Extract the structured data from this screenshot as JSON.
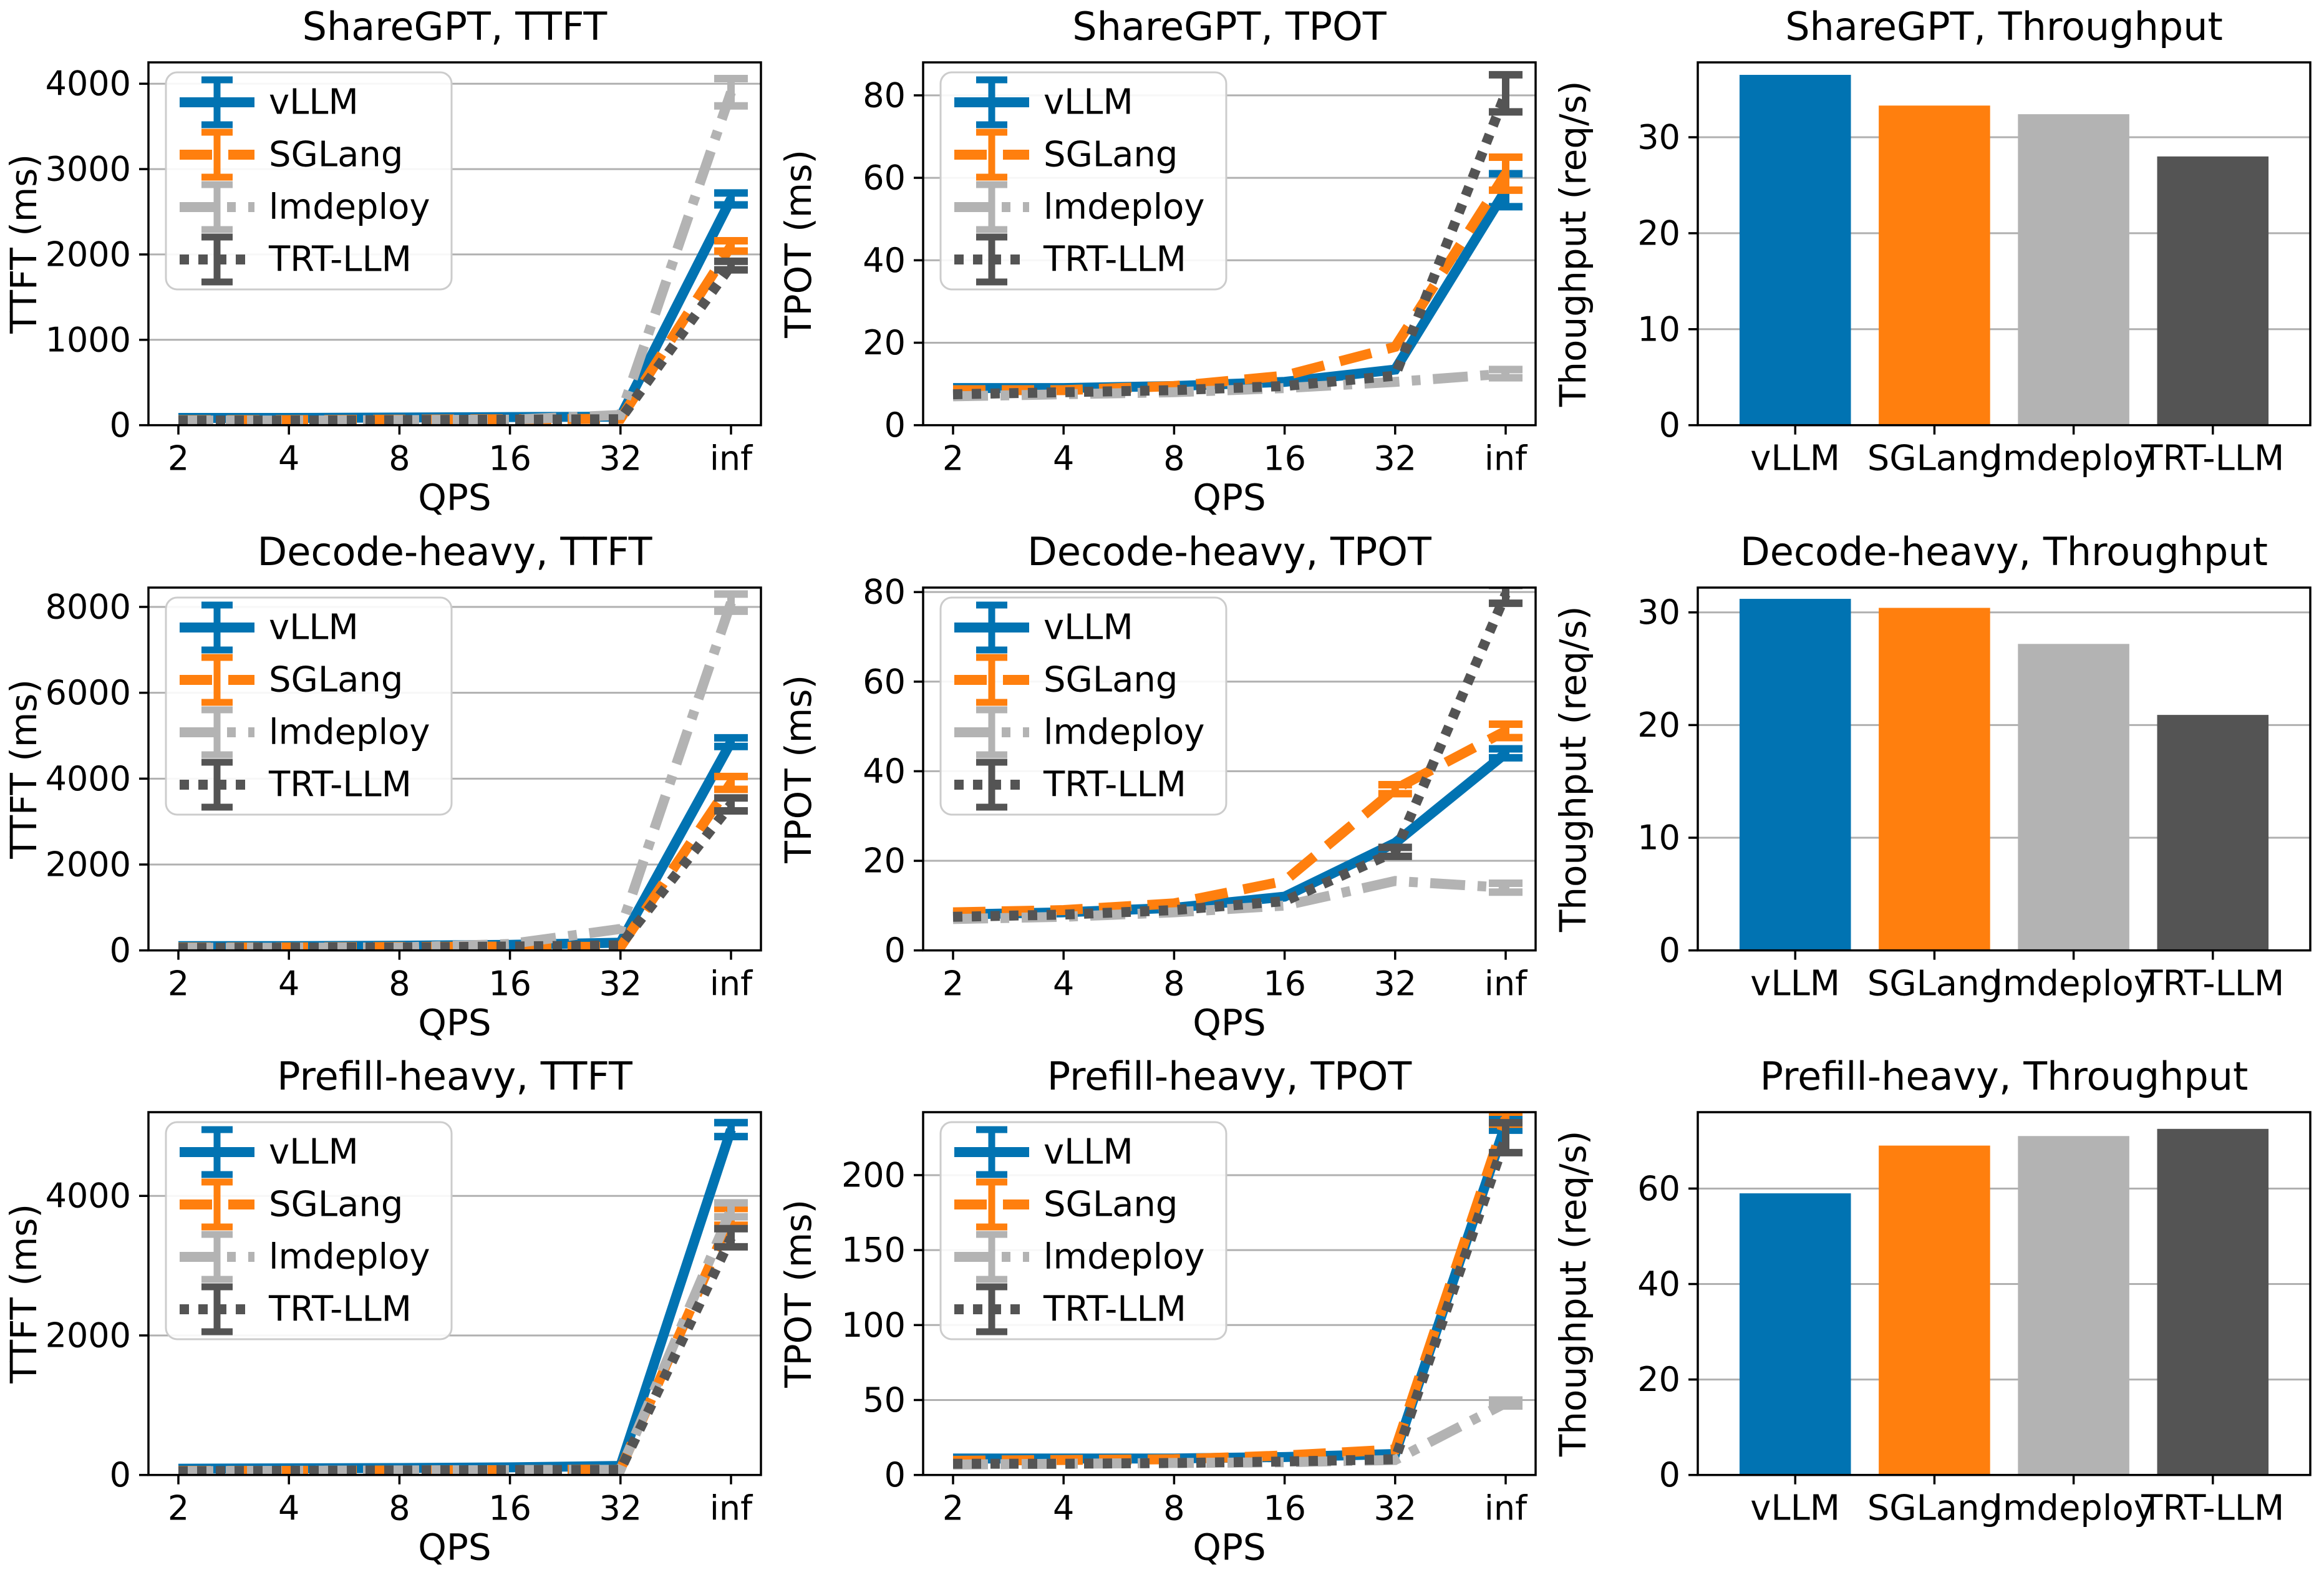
{
  "figure": {
    "background": "#ffffff",
    "grid_color": "#b0b0b0",
    "spine_color": "#000000",
    "legend_border_color": "#cccccc",
    "frameworks": [
      "vLLM",
      "SGLang",
      "lmdeploy",
      "TRT-LLM"
    ],
    "palette": {
      "vLLM": "#0173b2",
      "SGLang": "#ff7f0e",
      "lmdeploy": "#b3b3b3",
      "TRT-LLM": "#545454"
    },
    "line_styles": {
      "vLLM": "solid",
      "SGLang": "dashed",
      "lmdeploy": "dashdot",
      "TRT-LLM": "dotted"
    }
  },
  "chart_data": [
    {
      "type": "line",
      "title": "ShareGPT, TTFT",
      "xlabel": "QPS",
      "ylabel": "TTFT (ms)",
      "categories": [
        "2",
        "4",
        "8",
        "16",
        "32",
        "inf"
      ],
      "yticks": [
        0,
        1000,
        2000,
        3000,
        4000
      ],
      "ylim": [
        0,
        4250
      ],
      "grid": true,
      "legend_position": "upper left",
      "series": [
        {
          "name": "vLLM",
          "values": [
            85,
            85,
            90,
            95,
            100,
            2650
          ],
          "err": [
            0,
            0,
            0,
            0,
            0,
            70
          ]
        },
        {
          "name": "SGLang",
          "values": [
            60,
            60,
            65,
            70,
            75,
            2100
          ],
          "err": [
            0,
            0,
            0,
            0,
            0,
            60
          ]
        },
        {
          "name": "lmdeploy",
          "values": [
            55,
            55,
            60,
            65,
            120,
            3900
          ],
          "err": [
            0,
            0,
            0,
            0,
            0,
            160
          ]
        },
        {
          "name": "TRT-LLM",
          "values": [
            55,
            55,
            60,
            65,
            70,
            1870
          ],
          "err": [
            0,
            0,
            0,
            0,
            0,
            50
          ]
        }
      ]
    },
    {
      "type": "line",
      "title": "ShareGPT, TPOT",
      "xlabel": "QPS",
      "ylabel": "TPOT (ms)",
      "categories": [
        "2",
        "4",
        "8",
        "16",
        "32",
        "inf"
      ],
      "yticks": [
        0,
        20,
        40,
        60,
        80
      ],
      "ylim": [
        0,
        88
      ],
      "grid": true,
      "legend_position": "upper left",
      "series": [
        {
          "name": "vLLM",
          "values": [
            9,
            9,
            9.5,
            10.5,
            13.5,
            57
          ],
          "err": [
            0,
            0,
            0,
            0,
            0,
            4
          ]
        },
        {
          "name": "SGLang",
          "values": [
            8.5,
            8.5,
            9.5,
            12,
            19,
            61
          ],
          "err": [
            0,
            0,
            0,
            0,
            0,
            4
          ]
        },
        {
          "name": "lmdeploy",
          "values": [
            7,
            7.5,
            8,
            9,
            10.5,
            12.5
          ],
          "err": [
            0,
            0,
            0,
            0,
            0,
            1
          ]
        },
        {
          "name": "TRT-LLM",
          "values": [
            7.5,
            8,
            8.5,
            9.5,
            12,
            80.5
          ],
          "err": [
            0,
            0,
            0,
            0,
            0,
            4.5
          ]
        }
      ]
    },
    {
      "type": "bar",
      "title": "ShareGPT, Throughput",
      "xlabel": "",
      "ylabel": "Thoughput (req/s)",
      "categories": [
        "vLLM",
        "SGLang",
        "lmdeploy",
        "TRT-LLM"
      ],
      "values": [
        36.5,
        33.3,
        32.4,
        28.0
      ],
      "yticks": [
        0,
        10,
        20,
        30
      ],
      "ylim": [
        0,
        37.8
      ],
      "grid": true
    },
    {
      "type": "line",
      "title": "Decode-heavy, TTFT",
      "xlabel": "QPS",
      "ylabel": "TTFT (ms)",
      "categories": [
        "2",
        "4",
        "8",
        "16",
        "32",
        "inf"
      ],
      "yticks": [
        0,
        2000,
        4000,
        6000,
        8000
      ],
      "ylim": [
        0,
        8450
      ],
      "grid": true,
      "legend_position": "upper left",
      "series": [
        {
          "name": "vLLM",
          "values": [
            100,
            100,
            110,
            130,
            180,
            4850
          ],
          "err": [
            0,
            0,
            0,
            0,
            0,
            100
          ]
        },
        {
          "name": "SGLang",
          "values": [
            70,
            70,
            80,
            90,
            80,
            3900
          ],
          "err": [
            0,
            0,
            0,
            0,
            0,
            150
          ]
        },
        {
          "name": "lmdeploy",
          "values": [
            60,
            65,
            70,
            150,
            500,
            8100
          ],
          "err": [
            0,
            0,
            0,
            0,
            0,
            200
          ]
        },
        {
          "name": "TRT-LLM",
          "values": [
            60,
            65,
            70,
            90,
            120,
            3400
          ],
          "err": [
            0,
            0,
            0,
            0,
            0,
            150
          ]
        }
      ]
    },
    {
      "type": "line",
      "title": "Decode-heavy, TPOT",
      "xlabel": "QPS",
      "ylabel": "TPOT (ms)",
      "categories": [
        "2",
        "4",
        "8",
        "16",
        "32",
        "inf"
      ],
      "yticks": [
        0,
        20,
        40,
        60,
        80
      ],
      "ylim": [
        0,
        81
      ],
      "grid": true,
      "legend_position": "upper left",
      "series": [
        {
          "name": "vLLM",
          "values": [
            8,
            8.5,
            9.5,
            12,
            24,
            44
          ],
          "err": [
            0,
            0,
            0,
            0,
            0,
            1
          ]
        },
        {
          "name": "SGLang",
          "values": [
            8.5,
            9,
            10.5,
            15.5,
            36,
            49
          ],
          "err": [
            0,
            0,
            0,
            0,
            1,
            1.5
          ]
        },
        {
          "name": "lmdeploy",
          "values": [
            7,
            7.5,
            8.5,
            10,
            15.5,
            14
          ],
          "err": [
            0,
            0,
            0,
            0,
            0,
            1
          ]
        },
        {
          "name": "TRT-LLM",
          "values": [
            7.5,
            8,
            9,
            11,
            22,
            79.5
          ],
          "err": [
            0,
            0,
            0,
            0,
            1,
            2
          ]
        }
      ]
    },
    {
      "type": "bar",
      "title": "Decode-heavy, Throughput",
      "xlabel": "",
      "ylabel": "Thoughput (req/s)",
      "categories": [
        "vLLM",
        "SGLang",
        "lmdeploy",
        "TRT-LLM"
      ],
      "values": [
        31.2,
        30.4,
        27.2,
        20.9
      ],
      "yticks": [
        0,
        10,
        20,
        30
      ],
      "ylim": [
        0,
        32.2
      ],
      "grid": true
    },
    {
      "type": "line",
      "title": "Prefill-heavy, TTFT",
      "xlabel": "QPS",
      "ylabel": "TTFT (ms)",
      "categories": [
        "2",
        "4",
        "8",
        "16",
        "32",
        "inf"
      ],
      "yticks": [
        0,
        2000,
        4000
      ],
      "ylim": [
        0,
        5200
      ],
      "grid": true,
      "legend_position": "upper left",
      "series": [
        {
          "name": "vLLM",
          "values": [
            90,
            95,
            100,
            110,
            130,
            4950
          ],
          "err": [
            0,
            0,
            0,
            0,
            0,
            100
          ]
        },
        {
          "name": "SGLang",
          "values": [
            60,
            60,
            65,
            70,
            80,
            3700
          ],
          "err": [
            0,
            0,
            0,
            0,
            0,
            120
          ]
        },
        {
          "name": "lmdeploy",
          "values": [
            55,
            60,
            65,
            70,
            75,
            3800
          ],
          "err": [
            0,
            0,
            0,
            0,
            0,
            100
          ]
        },
        {
          "name": "TRT-LLM",
          "values": [
            55,
            60,
            65,
            70,
            75,
            3400
          ],
          "err": [
            0,
            0,
            0,
            0,
            0,
            130
          ]
        }
      ]
    },
    {
      "type": "line",
      "title": "Prefill-heavy, TPOT",
      "xlabel": "QPS",
      "ylabel": "TPOT (ms)",
      "categories": [
        "2",
        "4",
        "8",
        "16",
        "32",
        "inf"
      ],
      "yticks": [
        0,
        50,
        100,
        150,
        200
      ],
      "ylim": [
        0,
        242
      ],
      "grid": true,
      "legend_position": "upper left",
      "series": [
        {
          "name": "vLLM",
          "values": [
            11,
            11,
            11,
            12,
            14,
            234
          ],
          "err": [
            0,
            0,
            0,
            0,
            0,
            4
          ]
        },
        {
          "name": "SGLang",
          "values": [
            9.5,
            10,
            10.5,
            13,
            17,
            238
          ],
          "err": [
            0,
            0,
            0,
            0,
            0,
            4
          ]
        },
        {
          "name": "lmdeploy",
          "values": [
            7,
            7.5,
            8,
            8.5,
            10,
            48
          ],
          "err": [
            0,
            0,
            0,
            0,
            0,
            2
          ]
        },
        {
          "name": "TRT-LLM",
          "values": [
            7.5,
            7.5,
            8,
            9,
            10.5,
            225
          ],
          "err": [
            0,
            0,
            0,
            0,
            0,
            10
          ]
        }
      ]
    },
    {
      "type": "bar",
      "title": "Prefill-heavy, Throughput",
      "xlabel": "",
      "ylabel": "Thoughput (req/s)",
      "categories": [
        "vLLM",
        "SGLang",
        "lmdeploy",
        "TRT-LLM"
      ],
      "values": [
        59,
        69,
        71,
        72.5
      ],
      "yticks": [
        0,
        20,
        40,
        60
      ],
      "ylim": [
        0,
        76
      ],
      "grid": true
    }
  ]
}
